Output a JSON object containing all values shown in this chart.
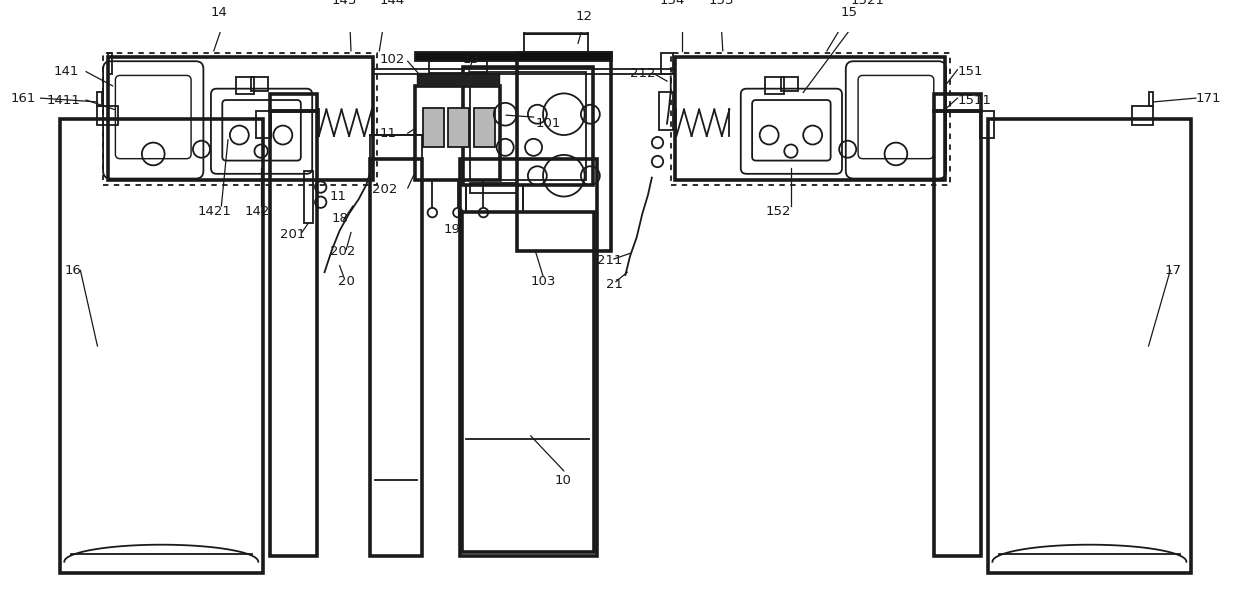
{
  "background": "#ffffff",
  "lc": "#1a1a1a",
  "lw": 1.3,
  "fig_width": 12.4,
  "fig_height": 5.92,
  "dpi": 100
}
